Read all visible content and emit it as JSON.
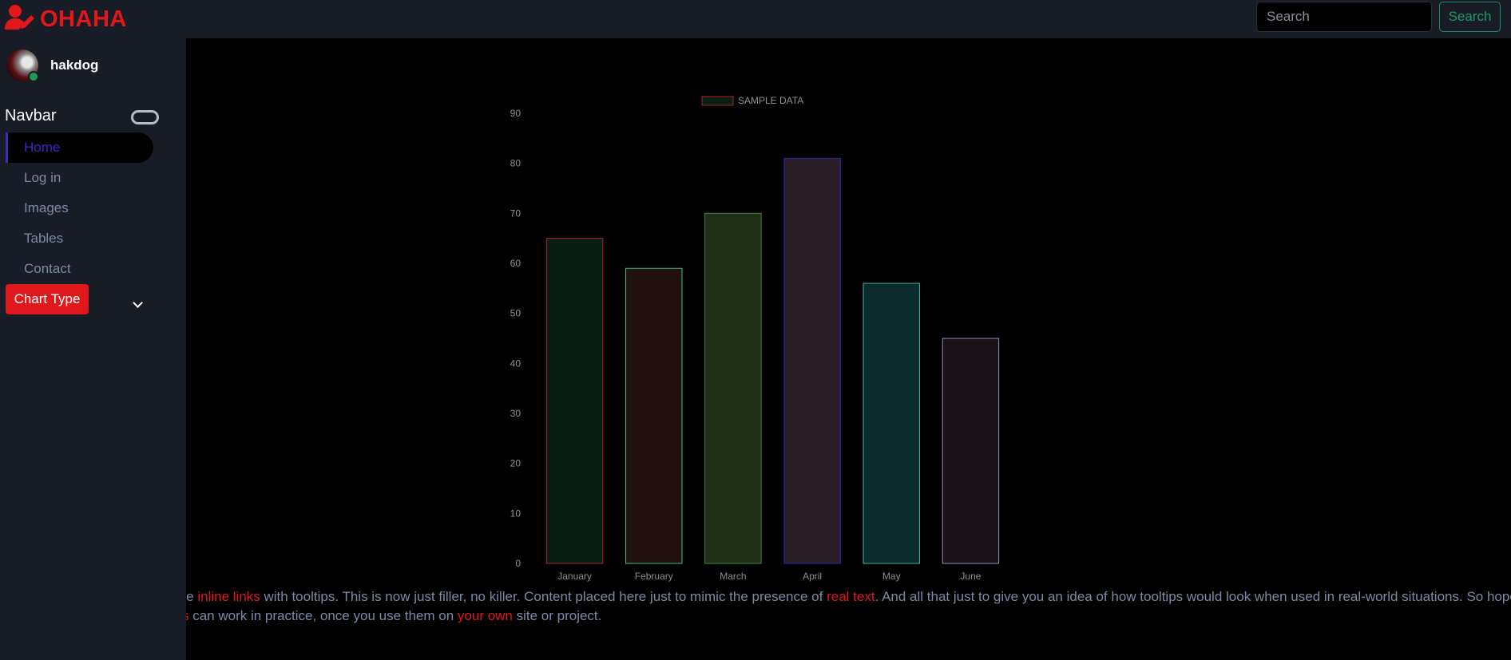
{
  "brand": {
    "name": "OHAHA",
    "icon": "user-edit-icon",
    "color": "#e0181b"
  },
  "search": {
    "placeholder": "Search",
    "button_label": "Search"
  },
  "user": {
    "name": "hakdog",
    "status": "online"
  },
  "sidebar": {
    "title": "Navbar",
    "items": [
      {
        "label": "Home",
        "active": true
      },
      {
        "label": "Log in"
      },
      {
        "label": "Images"
      },
      {
        "label": "Tables"
      },
      {
        "label": "Contact"
      }
    ],
    "chart_type_label": "Chart Type"
  },
  "chart_data": {
    "type": "bar",
    "categories": [
      "January",
      "February",
      "March",
      "April",
      "May",
      "June"
    ],
    "series": [
      {
        "name": "SAMPLE DATA",
        "values": [
          65,
          59,
          70,
          81,
          56,
          45
        ]
      }
    ],
    "ylim": [
      0,
      90
    ],
    "yticks": [
      0,
      10,
      20,
      30,
      40,
      50,
      60,
      70,
      80,
      90
    ],
    "legend_position": "top",
    "grid": false,
    "bar_fills": [
      "#0a1f14",
      "#20110e",
      "#1f2e17",
      "#2a1f26",
      "#0b2a2c",
      "#1a1219"
    ],
    "bar_borders": [
      "#b0202a",
      "#3fc07a",
      "#3a8a35",
      "#2b22b8",
      "#3fb3a0",
      "#9a8bc0"
    ]
  },
  "footer": {
    "line1": [
      {
        "text": "me ",
        "hl": false
      },
      {
        "text": "inline links",
        "hl": true
      },
      {
        "text": " with tooltips. This is now just filler, no killer. Content placed here just to mimic the presence of ",
        "hl": false
      },
      {
        "text": "real text",
        "hl": true
      },
      {
        "text": ". And all that just to give you an idea of how tooltips would look when used in real-world situations. So hopefully you've",
        "hl": false
      }
    ],
    "line2": [
      {
        "text": "s",
        "hl": true
      },
      {
        "text": " can work in practice, once you use them on ",
        "hl": false
      },
      {
        "text": "your own",
        "hl": true
      },
      {
        "text": " site or project.",
        "hl": false
      }
    ]
  }
}
